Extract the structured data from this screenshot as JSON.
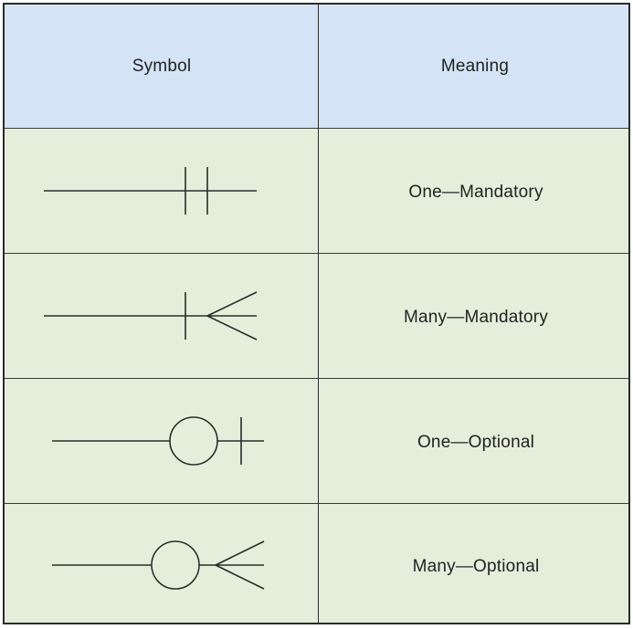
{
  "header": {
    "symbol_label": "Symbol",
    "meaning_label": "Meaning"
  },
  "rows": [
    {
      "symbol": "one-mandatory-symbol",
      "meaning": "One—Mandatory"
    },
    {
      "symbol": "many-mandatory-symbol",
      "meaning": "Many—Mandatory"
    },
    {
      "symbol": "one-optional-symbol",
      "meaning": "One—Optional"
    },
    {
      "symbol": "many-optional-symbol",
      "meaning": "Many—Optional"
    }
  ],
  "colors": {
    "header_bg": "#d4e4f6",
    "body_bg": "#e5eedb",
    "line": "#2b2b2b"
  }
}
